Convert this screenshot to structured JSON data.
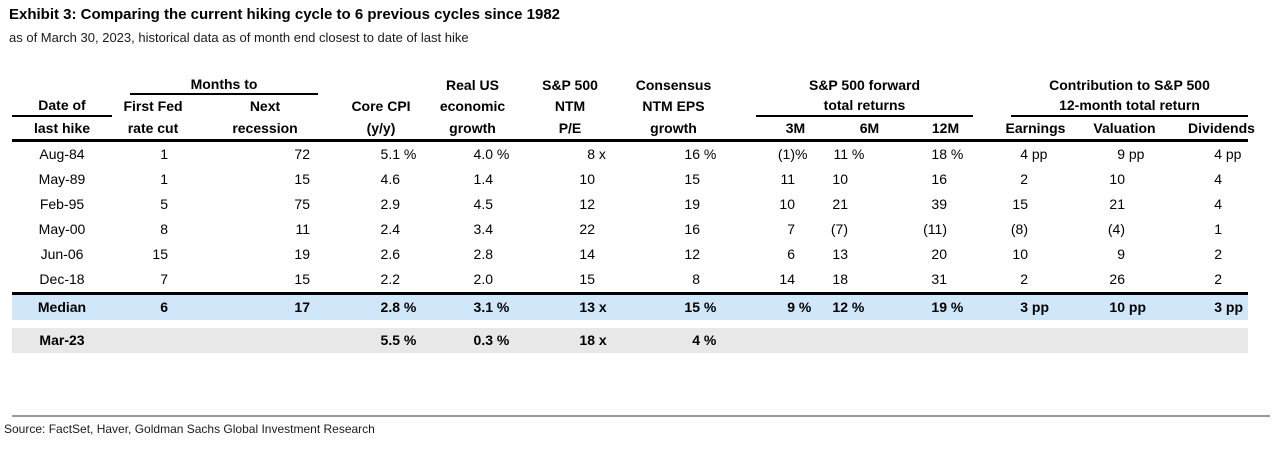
{
  "title": "Exhibit 3: Comparing the current hiking cycle to 6 previous cycles since 1982",
  "subtitle": "as of March 30, 2023, historical data as of month end closest to date of last hike",
  "source": "Source: FactSet, Haver, Goldman Sachs Global Investment Research",
  "colors": {
    "median_row_bg": "#cfe7f9",
    "current_row_bg": "#e8e8e8",
    "header_line": "#000000",
    "footer_rule": "#9a9a9a"
  },
  "header": {
    "date": {
      "l1": "Date of",
      "l2": "last hike"
    },
    "months_to": {
      "group": "Months to",
      "first_cut": {
        "l1": "First Fed",
        "l2": "rate cut"
      },
      "next_recession": {
        "l1": "Next",
        "l2": "recession"
      }
    },
    "core_cpi": {
      "l1": "Core CPI",
      "l2": "(y/y)"
    },
    "real_growth": {
      "l1": "Real US",
      "l2": "economic",
      "l3": "growth"
    },
    "ntm_pe": {
      "l1": "S&P 500",
      "l2": "NTM",
      "l3": "P/E"
    },
    "eps_growth": {
      "l1": "Consensus",
      "l2": "NTM EPS",
      "l3": "growth"
    },
    "forward_returns": {
      "group_l1": "S&P 500 forward",
      "group_l2": "total returns",
      "cols": [
        "3M",
        "6M",
        "12M"
      ]
    },
    "contribution": {
      "group_l1": "Contribution to S&P 500",
      "group_l2": "12-month total return",
      "cols": [
        "Earnings",
        "Valuation",
        "Dividends"
      ]
    }
  },
  "rows": [
    {
      "label": "Aug-84",
      "values": [
        [
          "1",
          ""
        ],
        [
          "72",
          ""
        ],
        [
          "5.1",
          " %"
        ],
        [
          "4.0",
          " %"
        ],
        [
          "8",
          " x"
        ],
        [
          "16",
          " %"
        ],
        [
          "(1)",
          "%"
        ],
        [
          "11",
          " %"
        ],
        [
          "18",
          " %"
        ],
        [
          "4",
          " pp"
        ],
        [
          "9",
          " pp"
        ],
        [
          "4",
          " pp"
        ]
      ]
    },
    {
      "label": "May-89",
      "values": [
        [
          "1",
          ""
        ],
        [
          "15",
          ""
        ],
        [
          "4.6",
          ""
        ],
        [
          "1.4",
          ""
        ],
        [
          "10",
          ""
        ],
        [
          "15",
          ""
        ],
        [
          "11",
          ""
        ],
        [
          "10",
          ""
        ],
        [
          "16",
          ""
        ],
        [
          "2",
          ""
        ],
        [
          "10",
          ""
        ],
        [
          "4",
          ""
        ]
      ]
    },
    {
      "label": "Feb-95",
      "values": [
        [
          "5",
          ""
        ],
        [
          "75",
          ""
        ],
        [
          "2.9",
          ""
        ],
        [
          "4.5",
          ""
        ],
        [
          "12",
          ""
        ],
        [
          "19",
          ""
        ],
        [
          "10",
          ""
        ],
        [
          "21",
          ""
        ],
        [
          "39",
          ""
        ],
        [
          "15",
          ""
        ],
        [
          "21",
          ""
        ],
        [
          "4",
          ""
        ]
      ]
    },
    {
      "label": "May-00",
      "values": [
        [
          "8",
          ""
        ],
        [
          "11",
          ""
        ],
        [
          "2.4",
          ""
        ],
        [
          "3.4",
          ""
        ],
        [
          "22",
          ""
        ],
        [
          "16",
          ""
        ],
        [
          "7",
          ""
        ],
        [
          "(7)",
          ""
        ],
        [
          "(11)",
          ""
        ],
        [
          "(8)",
          ""
        ],
        [
          "(4)",
          ""
        ],
        [
          "1",
          ""
        ]
      ]
    },
    {
      "label": "Jun-06",
      "values": [
        [
          "15",
          ""
        ],
        [
          "19",
          ""
        ],
        [
          "2.6",
          ""
        ],
        [
          "2.8",
          ""
        ],
        [
          "14",
          ""
        ],
        [
          "12",
          ""
        ],
        [
          "6",
          ""
        ],
        [
          "13",
          ""
        ],
        [
          "20",
          ""
        ],
        [
          "10",
          ""
        ],
        [
          "9",
          ""
        ],
        [
          "2",
          ""
        ]
      ]
    },
    {
      "label": "Dec-18",
      "values": [
        [
          "7",
          ""
        ],
        [
          "15",
          ""
        ],
        [
          "2.2",
          ""
        ],
        [
          "2.0",
          ""
        ],
        [
          "15",
          ""
        ],
        [
          "8",
          ""
        ],
        [
          "14",
          ""
        ],
        [
          "18",
          ""
        ],
        [
          "31",
          ""
        ],
        [
          "2",
          ""
        ],
        [
          "26",
          ""
        ],
        [
          "2",
          ""
        ]
      ]
    }
  ],
  "median_row": {
    "label": "Median",
    "values": [
      [
        "6",
        ""
      ],
      [
        "17",
        ""
      ],
      [
        "2.8",
        " %"
      ],
      [
        "3.1",
        " %"
      ],
      [
        "13",
        " x"
      ],
      [
        "15",
        " %"
      ],
      [
        "9",
        " %"
      ],
      [
        "12",
        " %"
      ],
      [
        "19",
        " %"
      ],
      [
        "3",
        " pp"
      ],
      [
        "10",
        " pp"
      ],
      [
        "3",
        " pp"
      ]
    ]
  },
  "current_row": {
    "label": "Mar-23",
    "values": [
      [
        "",
        ""
      ],
      [
        "",
        ""
      ],
      [
        "5.5",
        " %"
      ],
      [
        "0.3",
        " %"
      ],
      [
        "18",
        " x"
      ],
      [
        "4",
        " %"
      ],
      [
        "",
        ""
      ],
      [
        "",
        ""
      ],
      [
        "",
        ""
      ],
      [
        "",
        ""
      ],
      [
        "",
        ""
      ],
      [
        "",
        ""
      ]
    ]
  }
}
